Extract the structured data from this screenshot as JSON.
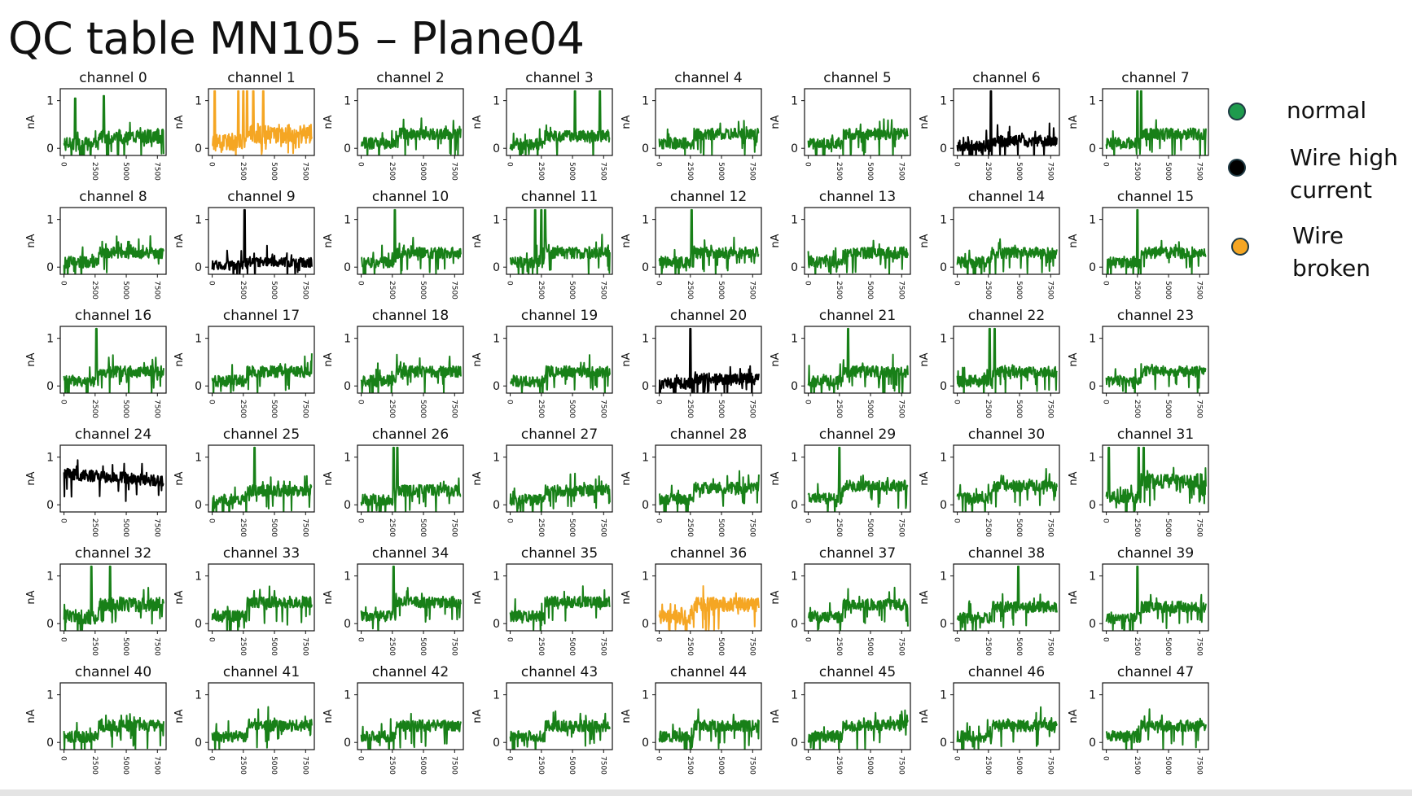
{
  "slide": {
    "title": "QC table MN105 – Plane04"
  },
  "legend": [
    {
      "label": "normal",
      "color": "#1e9b4d"
    },
    {
      "label": "Wire high\ncurrent",
      "color": "#000000"
    },
    {
      "label": "Wire\nbroken",
      "color": "#f5a623"
    }
  ],
  "chart_data": {
    "type": "line",
    "layout": "6x8 grid of small multiples",
    "ylabel": "nA",
    "yticks": [
      "0",
      "1"
    ],
    "ylim": [
      -0.15,
      1.25
    ],
    "xticks": [
      "0",
      "2500",
      "5000",
      "7500"
    ],
    "xlim": [
      -300,
      8200
    ],
    "status_colors": {
      "green": "#188018",
      "black": "#000000",
      "orange": "#f5a623"
    },
    "series": [
      {
        "name": "channel 0",
        "color": "green",
        "baseline": 0.25,
        "noise": 0.15,
        "spikes": [
          [
            900,
            1.05
          ],
          [
            3200,
            1.1
          ]
        ]
      },
      {
        "name": "channel 1",
        "color": "orange",
        "baseline": 0.3,
        "noise": 0.2,
        "spikes": [
          [
            200,
            1.2
          ],
          [
            2100,
            1.2
          ],
          [
            2500,
            1.2
          ],
          [
            2800,
            1.2
          ],
          [
            3300,
            1.2
          ],
          [
            4100,
            1.2
          ]
        ]
      },
      {
        "name": "channel 2",
        "color": "green",
        "baseline": 0.3,
        "noise": 0.12,
        "spikes": []
      },
      {
        "name": "channel 3",
        "color": "green",
        "baseline": 0.25,
        "noise": 0.12,
        "spikes": [
          [
            5200,
            1.2
          ],
          [
            7200,
            1.2
          ]
        ]
      },
      {
        "name": "channel 4",
        "color": "green",
        "baseline": 0.3,
        "noise": 0.12,
        "spikes": []
      },
      {
        "name": "channel 5",
        "color": "green",
        "baseline": 0.3,
        "noise": 0.12,
        "spikes": []
      },
      {
        "name": "channel 6",
        "color": "black",
        "baseline": 0.15,
        "noise": 0.12,
        "spikes": [
          [
            2700,
            1.2
          ]
        ]
      },
      {
        "name": "channel 7",
        "color": "green",
        "baseline": 0.3,
        "noise": 0.12,
        "spikes": [
          [
            2500,
            1.2
          ],
          [
            2800,
            1.2
          ]
        ]
      },
      {
        "name": "channel 8",
        "color": "green",
        "baseline": 0.3,
        "noise": 0.12,
        "spikes": []
      },
      {
        "name": "channel 9",
        "color": "black",
        "baseline": 0.1,
        "noise": 0.1,
        "spikes": [
          [
            2600,
            1.2
          ]
        ]
      },
      {
        "name": "channel 10",
        "color": "green",
        "baseline": 0.3,
        "noise": 0.12,
        "spikes": [
          [
            2700,
            1.2
          ]
        ]
      },
      {
        "name": "channel 11",
        "color": "green",
        "baseline": 0.3,
        "noise": 0.12,
        "spikes": [
          [
            2000,
            1.2
          ],
          [
            2500,
            1.2
          ],
          [
            2800,
            1.2
          ]
        ]
      },
      {
        "name": "channel 12",
        "color": "green",
        "baseline": 0.3,
        "noise": 0.12,
        "spikes": [
          [
            2600,
            1.2
          ]
        ]
      },
      {
        "name": "channel 13",
        "color": "green",
        "baseline": 0.3,
        "noise": 0.12,
        "spikes": []
      },
      {
        "name": "channel 14",
        "color": "green",
        "baseline": 0.3,
        "noise": 0.12,
        "spikes": []
      },
      {
        "name": "channel 15",
        "color": "green",
        "baseline": 0.3,
        "noise": 0.12,
        "spikes": [
          [
            2500,
            1.2
          ]
        ]
      },
      {
        "name": "channel 16",
        "color": "green",
        "baseline": 0.3,
        "noise": 0.12,
        "spikes": [
          [
            2600,
            1.2
          ]
        ]
      },
      {
        "name": "channel 17",
        "color": "green",
        "baseline": 0.3,
        "noise": 0.12,
        "spikes": []
      },
      {
        "name": "channel 18",
        "color": "green",
        "baseline": 0.3,
        "noise": 0.12,
        "spikes": []
      },
      {
        "name": "channel 19",
        "color": "green",
        "baseline": 0.3,
        "noise": 0.12,
        "spikes": []
      },
      {
        "name": "channel 20",
        "color": "black",
        "baseline": 0.15,
        "noise": 0.12,
        "spikes": [
          [
            2500,
            1.2
          ]
        ]
      },
      {
        "name": "channel 21",
        "color": "green",
        "baseline": 0.3,
        "noise": 0.12,
        "spikes": [
          [
            3200,
            1.2
          ]
        ]
      },
      {
        "name": "channel 22",
        "color": "green",
        "baseline": 0.3,
        "noise": 0.12,
        "spikes": [
          [
            2600,
            1.2
          ],
          [
            3000,
            1.2
          ]
        ]
      },
      {
        "name": "channel 23",
        "color": "green",
        "baseline": 0.3,
        "noise": 0.12,
        "spikes": []
      },
      {
        "name": "channel 24",
        "color": "black",
        "baseline": 0.65,
        "noise": 0.12,
        "spikes": []
      },
      {
        "name": "channel 25",
        "color": "green",
        "baseline": 0.3,
        "noise": 0.12,
        "spikes": [
          [
            3400,
            1.2
          ]
        ]
      },
      {
        "name": "channel 26",
        "color": "green",
        "baseline": 0.3,
        "noise": 0.12,
        "spikes": [
          [
            2600,
            1.2
          ],
          [
            2900,
            1.2
          ]
        ]
      },
      {
        "name": "channel 27",
        "color": "green",
        "baseline": 0.3,
        "noise": 0.12,
        "spikes": []
      },
      {
        "name": "channel 28",
        "color": "green",
        "baseline": 0.35,
        "noise": 0.12,
        "spikes": []
      },
      {
        "name": "channel 29",
        "color": "green",
        "baseline": 0.4,
        "noise": 0.12,
        "spikes": [
          [
            2500,
            1.2
          ]
        ]
      },
      {
        "name": "channel 30",
        "color": "green",
        "baseline": 0.4,
        "noise": 0.12,
        "spikes": []
      },
      {
        "name": "channel 31",
        "color": "green",
        "baseline": 0.5,
        "noise": 0.15,
        "spikes": [
          [
            200,
            1.2
          ],
          [
            2600,
            1.2
          ],
          [
            3000,
            1.2
          ]
        ]
      },
      {
        "name": "channel 32",
        "color": "green",
        "baseline": 0.4,
        "noise": 0.15,
        "spikes": [
          [
            2200,
            1.2
          ],
          [
            3700,
            1.2
          ]
        ]
      },
      {
        "name": "channel 33",
        "color": "green",
        "baseline": 0.45,
        "noise": 0.12,
        "spikes": []
      },
      {
        "name": "channel 34",
        "color": "green",
        "baseline": 0.45,
        "noise": 0.12,
        "spikes": [
          [
            2600,
            1.2
          ]
        ]
      },
      {
        "name": "channel 35",
        "color": "green",
        "baseline": 0.45,
        "noise": 0.12,
        "spikes": []
      },
      {
        "name": "channel 36",
        "color": "orange",
        "baseline": 0.4,
        "noise": 0.15,
        "spikes": []
      },
      {
        "name": "channel 37",
        "color": "green",
        "baseline": 0.4,
        "noise": 0.12,
        "spikes": []
      },
      {
        "name": "channel 38",
        "color": "green",
        "baseline": 0.35,
        "noise": 0.12,
        "spikes": [
          [
            4900,
            1.2
          ]
        ]
      },
      {
        "name": "channel 39",
        "color": "green",
        "baseline": 0.35,
        "noise": 0.12,
        "spikes": [
          [
            2500,
            1.2
          ]
        ]
      },
      {
        "name": "channel 40",
        "color": "green",
        "baseline": 0.35,
        "noise": 0.12,
        "spikes": []
      },
      {
        "name": "channel 41",
        "color": "green",
        "baseline": 0.35,
        "noise": 0.12,
        "spikes": []
      },
      {
        "name": "channel 42",
        "color": "green",
        "baseline": 0.35,
        "noise": 0.12,
        "spikes": []
      },
      {
        "name": "channel 43",
        "color": "green",
        "baseline": 0.35,
        "noise": 0.12,
        "spikes": []
      },
      {
        "name": "channel 44",
        "color": "green",
        "baseline": 0.35,
        "noise": 0.12,
        "spikes": []
      },
      {
        "name": "channel 45",
        "color": "green",
        "baseline": 0.35,
        "noise": 0.12,
        "spikes": []
      },
      {
        "name": "channel 46",
        "color": "green",
        "baseline": 0.35,
        "noise": 0.12,
        "spikes": []
      },
      {
        "name": "channel 47",
        "color": "green",
        "baseline": 0.35,
        "noise": 0.12,
        "spikes": []
      }
    ]
  }
}
